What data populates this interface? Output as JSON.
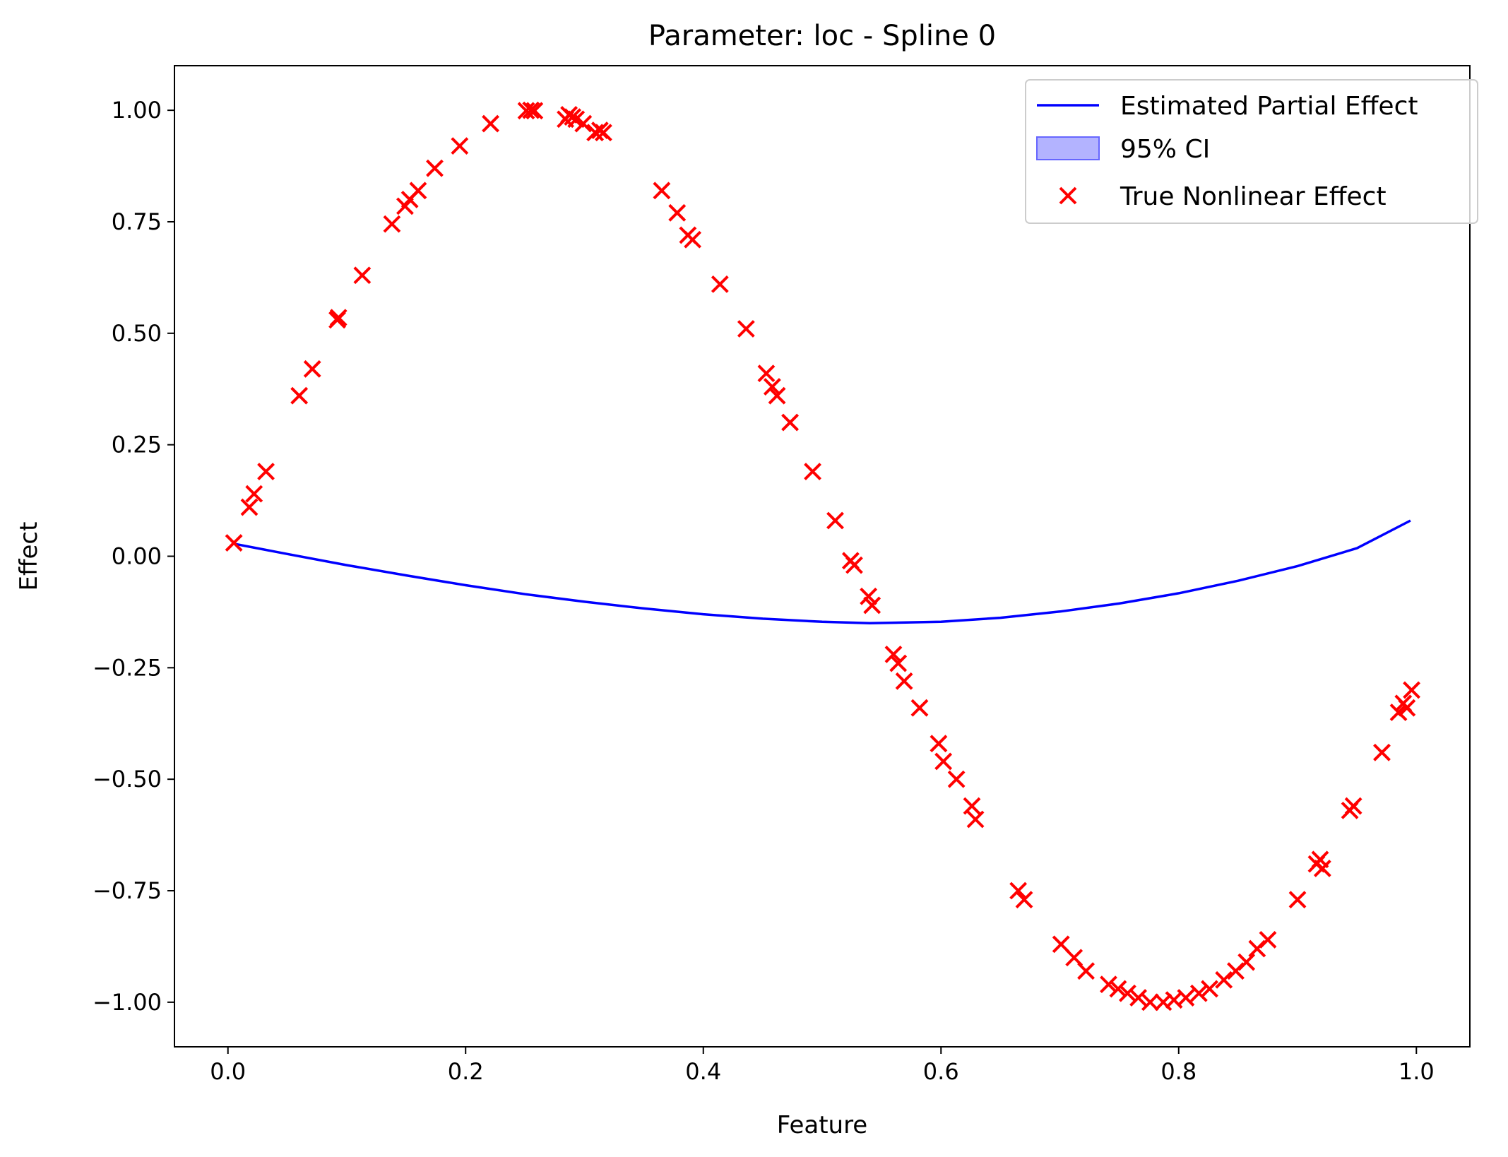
{
  "chart_data": {
    "type": "line",
    "title": "Parameter: loc - Spline 0",
    "xlabel": "Feature",
    "ylabel": "Effect",
    "xlim": [
      -0.045,
      1.045
    ],
    "ylim": [
      -1.1,
      1.1
    ],
    "xticks": [
      0.0,
      0.2,
      0.4,
      0.6,
      0.8,
      1.0
    ],
    "xtick_labels": [
      "0.0",
      "0.2",
      "0.4",
      "0.6",
      "0.8",
      "1.0"
    ],
    "yticks": [
      -1.0,
      -0.75,
      -0.5,
      -0.25,
      0.0,
      0.25,
      0.5,
      0.75,
      1.0
    ],
    "ytick_labels": [
      "−1.00",
      "−0.75",
      "−0.50",
      "−0.25",
      "0.00",
      "0.25",
      "0.50",
      "0.75",
      "1.00"
    ],
    "grid": false,
    "legend_position": "top-right",
    "colors": {
      "line": "#0000ff",
      "ci_fill": "#b3b3ff",
      "ci_edge": "#6666ff",
      "scatter": "#ff0000"
    },
    "series": [
      {
        "name": "Estimated Partial Effect",
        "kind": "line",
        "x": [
          0.005,
          0.05,
          0.1,
          0.15,
          0.2,
          0.25,
          0.3,
          0.35,
          0.4,
          0.45,
          0.5,
          0.54,
          0.6,
          0.65,
          0.7,
          0.75,
          0.8,
          0.85,
          0.9,
          0.95,
          0.995
        ],
        "y": [
          0.028,
          0.005,
          -0.02,
          -0.043,
          -0.065,
          -0.085,
          -0.102,
          -0.117,
          -0.13,
          -0.14,
          -0.147,
          -0.15,
          -0.147,
          -0.138,
          -0.124,
          -0.106,
          -0.083,
          -0.055,
          -0.022,
          0.018,
          0.08
        ]
      },
      {
        "name": "95% CI",
        "kind": "band",
        "x": [],
        "lower": [],
        "upper": []
      },
      {
        "name": "True Nonlinear Effect",
        "kind": "scatter",
        "x": [
          0.005,
          0.018,
          0.022,
          0.032,
          0.06,
          0.071,
          0.092,
          0.093,
          0.113,
          0.138,
          0.149,
          0.153,
          0.16,
          0.174,
          0.195,
          0.221,
          0.251,
          0.255,
          0.258,
          0.284,
          0.287,
          0.29,
          0.293,
          0.299,
          0.309,
          0.313,
          0.316,
          0.365,
          0.378,
          0.387,
          0.391,
          0.414,
          0.436,
          0.453,
          0.458,
          0.462,
          0.473,
          0.492,
          0.511,
          0.524,
          0.527,
          0.539,
          0.542,
          0.56,
          0.564,
          0.569,
          0.582,
          0.598,
          0.602,
          0.613,
          0.626,
          0.629,
          0.665,
          0.67,
          0.701,
          0.712,
          0.722,
          0.741,
          0.749,
          0.757,
          0.766,
          0.776,
          0.787,
          0.796,
          0.806,
          0.817,
          0.826,
          0.838,
          0.848,
          0.857,
          0.866,
          0.875,
          0.9,
          0.916,
          0.919,
          0.921,
          0.944,
          0.947,
          0.971,
          0.985,
          0.989,
          0.992,
          0.996
        ],
        "y": [
          0.03,
          0.11,
          0.14,
          0.19,
          0.36,
          0.42,
          0.53,
          0.535,
          0.63,
          0.745,
          0.785,
          0.8,
          0.82,
          0.87,
          0.92,
          0.97,
          0.999,
          1.0,
          0.999,
          0.98,
          0.99,
          0.985,
          0.98,
          0.97,
          0.95,
          0.955,
          0.95,
          0.82,
          0.77,
          0.72,
          0.71,
          0.61,
          0.51,
          0.41,
          0.38,
          0.36,
          0.3,
          0.19,
          0.08,
          -0.01,
          -0.02,
          -0.09,
          -0.11,
          -0.22,
          -0.24,
          -0.28,
          -0.34,
          -0.42,
          -0.46,
          -0.5,
          -0.56,
          -0.59,
          -0.75,
          -0.77,
          -0.87,
          -0.9,
          -0.93,
          -0.96,
          -0.97,
          -0.98,
          -0.99,
          -1.0,
          -1.0,
          -0.995,
          -0.99,
          -0.98,
          -0.97,
          -0.95,
          -0.93,
          -0.91,
          -0.88,
          -0.86,
          -0.77,
          -0.69,
          -0.68,
          -0.7,
          -0.57,
          -0.56,
          -0.44,
          -0.35,
          -0.33,
          -0.34,
          -0.3
        ]
      }
    ]
  }
}
